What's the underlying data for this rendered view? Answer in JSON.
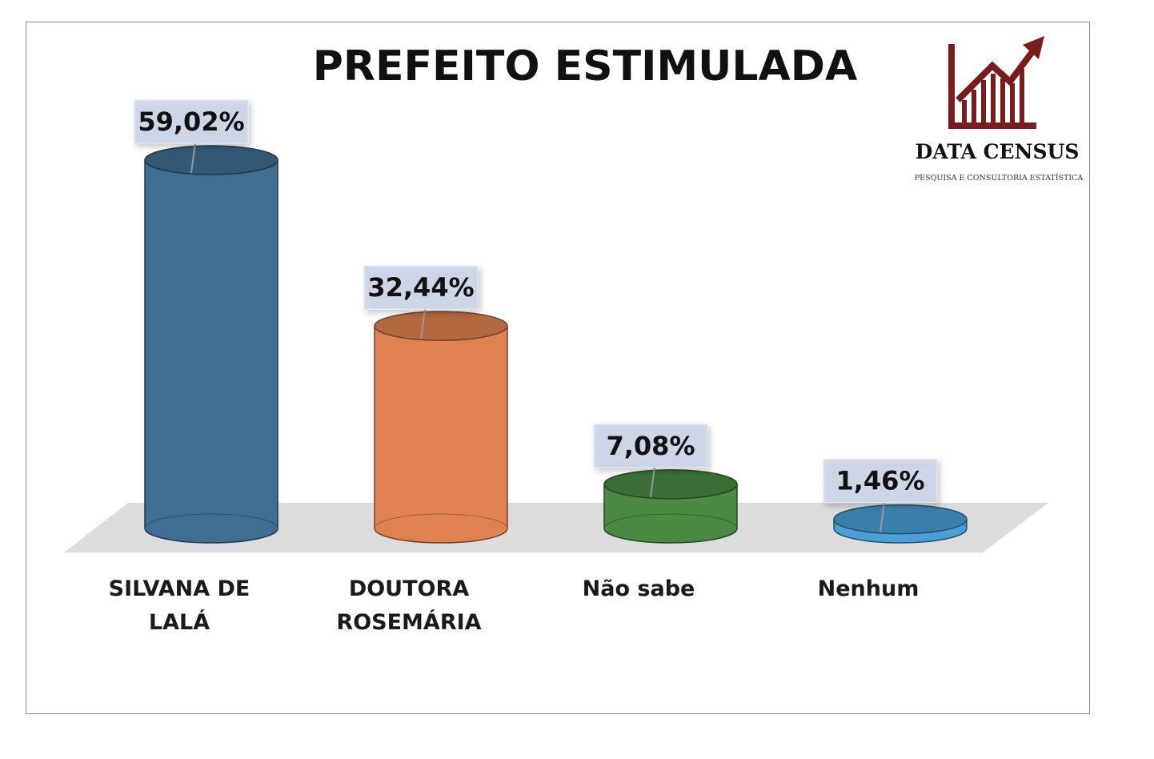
{
  "chart_data": {
    "type": "bar",
    "title": "PREFEITO ESTIMULADA",
    "categories": [
      [
        "SILVANA DE",
        "LALÁ"
      ],
      [
        "DOUTORA",
        "ROSEMÁRIA"
      ],
      [
        "Não sabe"
      ],
      [
        "Nenhum"
      ]
    ],
    "values": [
      59.02,
      32.44,
      7.08,
      1.46
    ],
    "value_labels": [
      "59,02%",
      "32,44%",
      "7,08%",
      "1,46%"
    ],
    "colors": [
      "#3f6e92",
      "#e08250",
      "#4a8a42",
      "#4aa0d6"
    ],
    "xlabel": "",
    "ylabel": "",
    "ylim": [
      0,
      60
    ],
    "grid": false,
    "legend": "none"
  },
  "logo": {
    "name": "DATA CENSUS",
    "tagline": "PESQUISA E CONSULTORIA ESTATÍSTICA",
    "color": "#7b1c1c"
  }
}
